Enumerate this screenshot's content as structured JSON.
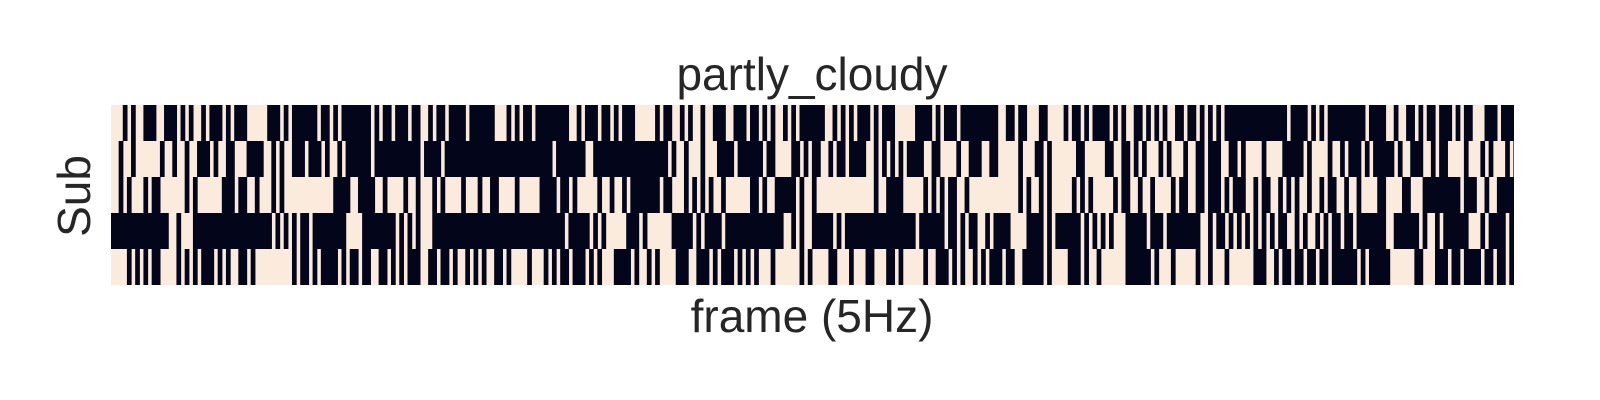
{
  "chart_data": {
    "type": "heatmap",
    "title": "partly_cloudy",
    "xlabel": "frame (5Hz)",
    "ylabel": "Sub",
    "x_ticks_shown": false,
    "y_ticks_shown": false,
    "colorbar_shown": false,
    "n_rows": 5,
    "n_frames": 340,
    "value_domain": [
      0,
      1
    ],
    "colors": {
      "0": "#03051a",
      "1": "#faebdd"
    },
    "rows": [
      "1110101100011000101011010001010001111100010100000010010100000001010010001001101001000010000001110101001000000001101000100101000111110100110101101100011000100101011010100000011010101000101000111110000101000100000000011001001110011110100101000010101100101010110010010101010000000000000001000010101000000000100001101100101001000101001110001000",
      "1101101111110110110110001011001110000110101100010001011010000001000000000001000010000000000000000000000000010000000110000000000000000001011011101110000100000010011110010100110100100001101010101000011001111011000110011111011100101111110011111001100101011101011101100100011001011110111100000101111011010001010000010110001101001111011101011101",
      "1101011101001111110101111110001001101110101111111111110000110000110111101101110101111011101100111101111100001001011111011011010000000100111010101011011111100101100000101101111111111111101100001111101010100110111111111111010110101111101010111110100110110111101001100100010100011010011010101101101001101101111001111001110000000001000110110000",
      "0000000000000011011100000000000000000001010101001000000001111000000001010101110000000000000000000000000000000010000010101111100010111111000001010000100000000000000110101100000101000000000000000001000000100101001101000011110000101000000101010101110000010001000000001101001010101010101001101011010100100100000001100000010110100000011101000010",
      "1111010101001111010101000101011001011111111101001010000101001001100101010001100100101101010110010111101110101001000101011100001011010111100011000101000101010111011111101011110011101110011100101111101100010101101010001001100000101111000101101111110000001011101111101101110111111000110100100100100100000010100000111111001110001001000010010010"
    ]
  }
}
